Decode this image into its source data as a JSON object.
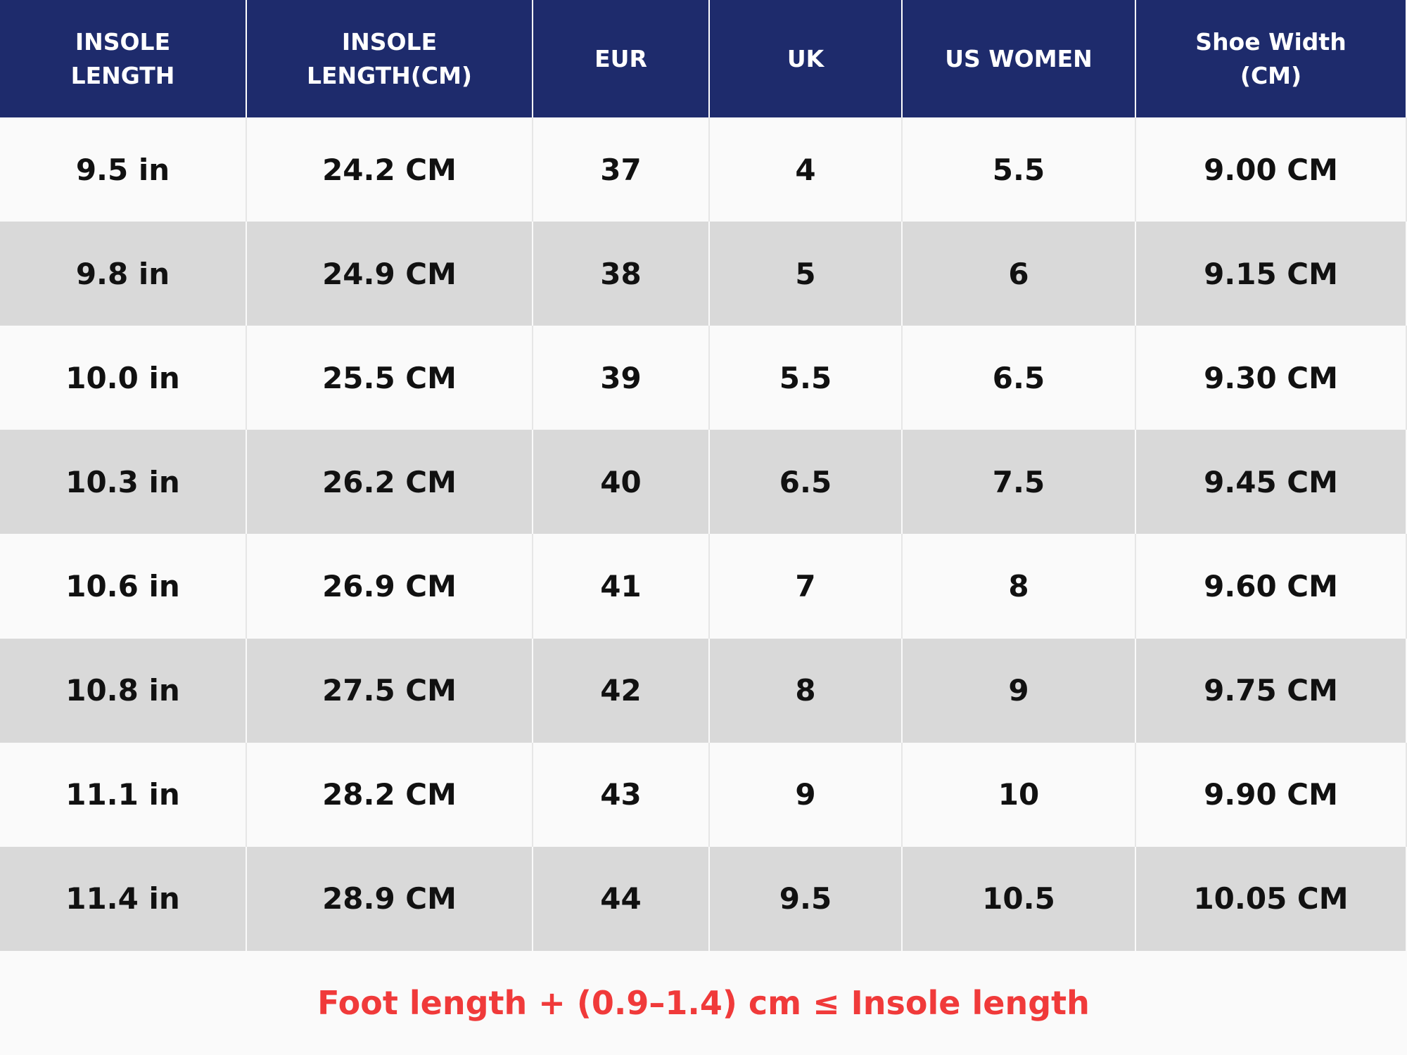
{
  "table": {
    "header": [
      [
        "INSOLE",
        "LENGTH"
      ],
      [
        "INSOLE",
        "LENGTH(CM)"
      ],
      [
        "EUR"
      ],
      [
        "UK"
      ],
      [
        "US WOMEN"
      ],
      [
        "Shoe Width",
        "(CM)"
      ]
    ],
    "rows": [
      [
        "9.5 in",
        "24.2 CM",
        "37",
        "4",
        "5.5",
        "9.00 CM"
      ],
      [
        "9.8 in",
        "24.9 CM",
        "38",
        "5",
        "6",
        "9.15 CM"
      ],
      [
        "10.0 in",
        "25.5 CM",
        "39",
        "5.5",
        "6.5",
        "9.30 CM"
      ],
      [
        "10.3 in",
        "26.2 CM",
        "40",
        "6.5",
        "7.5",
        "9.45 CM"
      ],
      [
        "10.6 in",
        "26.9 CM",
        "41",
        "7",
        "8",
        "9.60 CM"
      ],
      [
        "10.8 in",
        "27.5 CM",
        "42",
        "8",
        "9",
        "9.75 CM"
      ],
      [
        "11.1 in",
        "28.2 CM",
        "43",
        "9",
        "10",
        "9.90 CM"
      ],
      [
        "11.4 in",
        "28.9 CM",
        "44",
        "9.5",
        "10.5",
        "10.05 CM"
      ]
    ]
  },
  "footer": "Foot length + (0.9–1.4) cm ≤ Insole length"
}
